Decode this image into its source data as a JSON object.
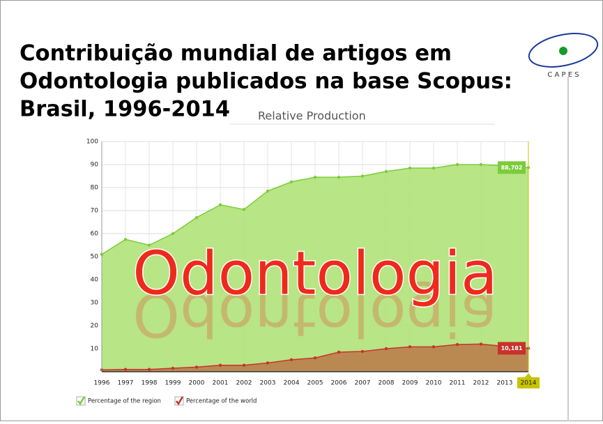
{
  "title_lines": [
    "Contribuição mundial de artigos em",
    "Odontologia publicados na base Scopus:",
    "Brasil, 1996-2014"
  ],
  "logo": "C A P E S",
  "overlay": "Odontologia",
  "chart_data": {
    "type": "area",
    "subtitle": "Relative Production",
    "categories": [
      "1996",
      "1997",
      "1998",
      "1999",
      "2000",
      "2001",
      "2002",
      "2003",
      "2004",
      "2005",
      "2006",
      "2007",
      "2008",
      "2009",
      "2010",
      "2011",
      "2012",
      "2013",
      "2014"
    ],
    "ylim": [
      0,
      100
    ],
    "yticks": [
      10,
      20,
      30,
      40,
      50,
      60,
      70,
      80,
      90,
      100
    ],
    "grid": true,
    "legend": "bottom-left",
    "series": [
      {
        "name": "Percentage of the region",
        "color": "#7ccc3a",
        "fill": "#b4e47e",
        "values": [
          51,
          57.5,
          55,
          60,
          67,
          72.5,
          70.5,
          78.5,
          82.5,
          84.5,
          84.5,
          85,
          87,
          88.5,
          88.5,
          90,
          90,
          89.5,
          88.702
        ],
        "value_labels": [
          null,
          null,
          null,
          null,
          null,
          null,
          null,
          null,
          null,
          null,
          null,
          null,
          null,
          null,
          null,
          null,
          null,
          null,
          "88,702"
        ]
      },
      {
        "name": "Percentage of the world",
        "color": "#c8322c",
        "fill": "#b9844f",
        "values": [
          0.8,
          1,
          1,
          1.5,
          2,
          2.8,
          2.8,
          3.8,
          5.2,
          6,
          8.5,
          8.8,
          10,
          10.8,
          10.8,
          11.8,
          12,
          11,
          10.181
        ],
        "value_labels": [
          null,
          null,
          null,
          null,
          null,
          null,
          null,
          null,
          null,
          null,
          null,
          null,
          null,
          null,
          null,
          null,
          null,
          null,
          "10,181"
        ]
      }
    ]
  }
}
